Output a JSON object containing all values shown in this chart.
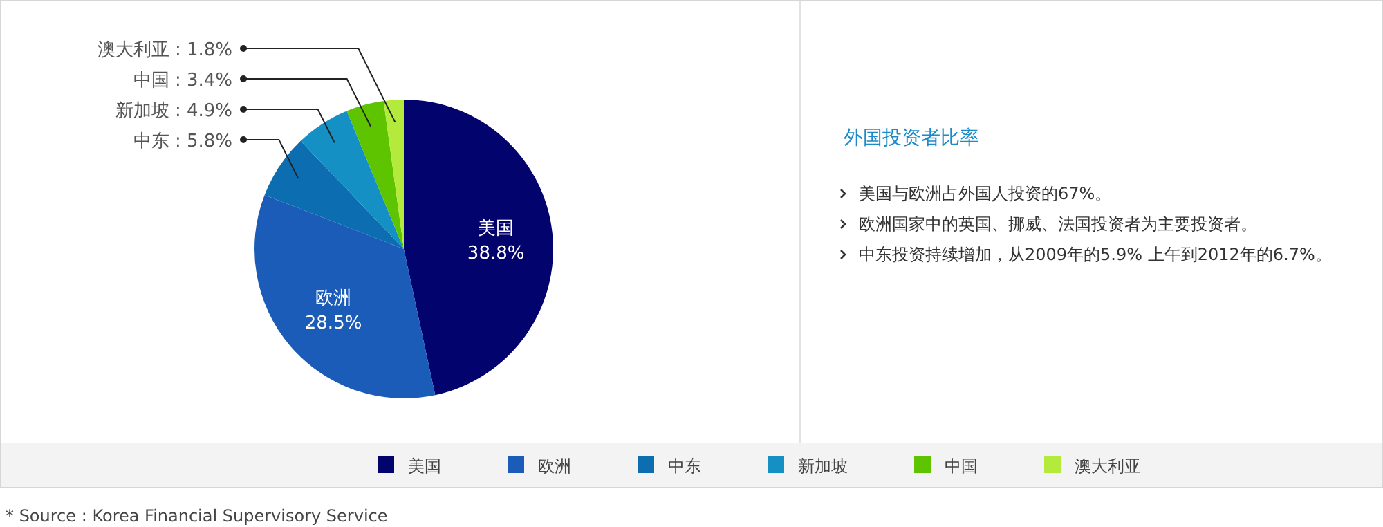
{
  "chart_data": {
    "type": "pie",
    "title": "外国投资者比率",
    "categories": [
      "美国",
      "欧洲",
      "中东",
      "新加坡",
      "中国",
      "澳大利亚"
    ],
    "values": [
      38.8,
      28.5,
      5.8,
      4.9,
      3.4,
      1.8
    ],
    "value_labels": [
      "38.8%",
      "28.5%",
      "中东 : 5.8%",
      "新加坡 : 4.9%",
      "中国 : 3.4%",
      "澳大利亚 : 1.8%"
    ],
    "colors": [
      "#03036e",
      "#1a5cb8",
      "#0c6db0",
      "#1490c4",
      "#5ec400",
      "#b4ea3c"
    ],
    "legend": "bottom",
    "annotations": [
      "美国与欧洲占外国人投资的67%。",
      "欧洲国家中的英国、挪威、法国投资者为主要投资者。",
      "中东投资持续增加，从2009年的5.9%  上午到2012年的6.7%。",
      "* Source : Korea Financial Supervisory Service"
    ]
  }
}
